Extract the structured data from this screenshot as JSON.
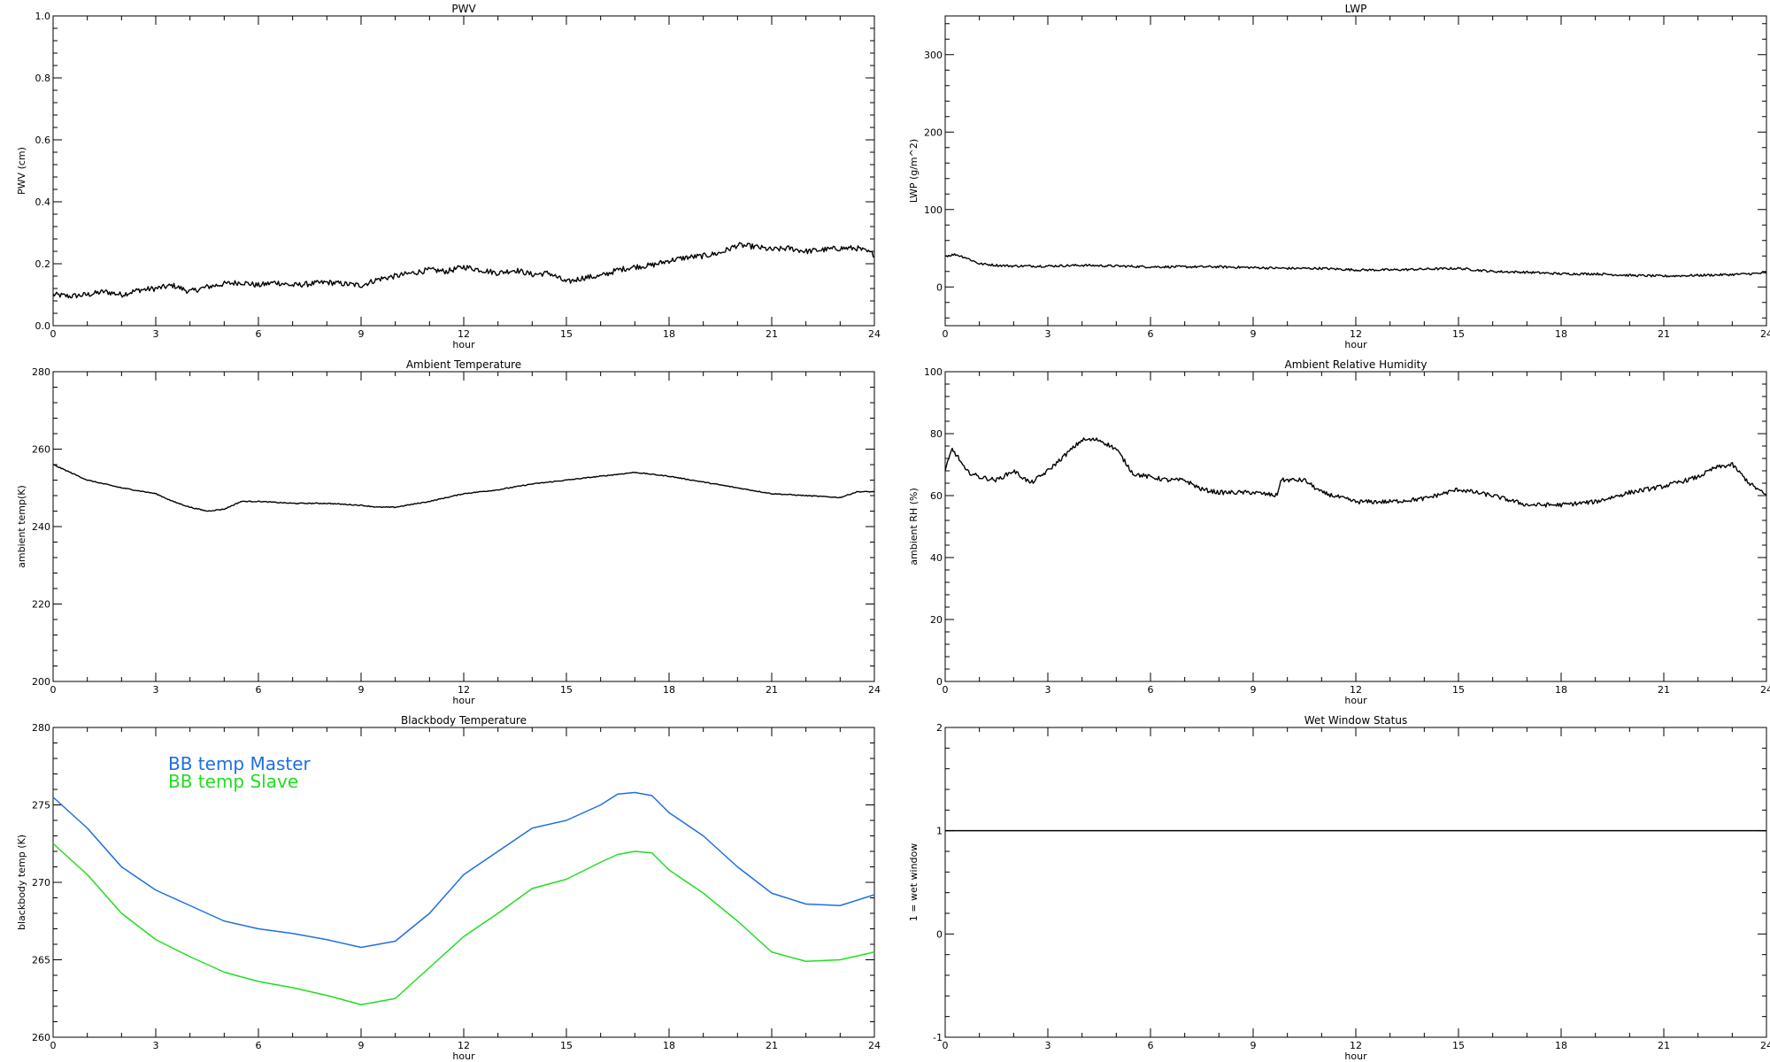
{
  "chart_data": [
    {
      "id": "pwv",
      "type": "line",
      "title": "PWV",
      "xlabel": "hour",
      "ylabel": "PWV (cm)",
      "xlim": [
        0,
        24
      ],
      "ylim": [
        0,
        1.0
      ],
      "xticks": [
        0,
        3,
        6,
        9,
        12,
        15,
        18,
        21,
        24
      ],
      "yticks": [
        "0.0",
        "0.2",
        "0.4",
        "0.6",
        "0.8",
        "1.0"
      ],
      "grid": false,
      "series": [
        {
          "color": "#000000",
          "noise": 0.009,
          "x": [
            0,
            0.5,
            1,
            1.5,
            2,
            2.5,
            3,
            3.5,
            4,
            4.5,
            5,
            5.5,
            6,
            6.5,
            7,
            7.5,
            8,
            8.5,
            9,
            9.5,
            10,
            10.5,
            11,
            11.5,
            12,
            12.5,
            13,
            13.5,
            14,
            14.5,
            15,
            15.5,
            16,
            16.5,
            17,
            17.5,
            18,
            18.5,
            19,
            19.5,
            20,
            20.5,
            21,
            21.5,
            22,
            22.5,
            23,
            23.5,
            24
          ],
          "y": [
            0.1,
            0.095,
            0.1,
            0.11,
            0.1,
            0.115,
            0.12,
            0.13,
            0.11,
            0.125,
            0.135,
            0.14,
            0.13,
            0.14,
            0.13,
            0.135,
            0.14,
            0.135,
            0.13,
            0.15,
            0.16,
            0.17,
            0.18,
            0.175,
            0.19,
            0.18,
            0.17,
            0.18,
            0.165,
            0.17,
            0.14,
            0.155,
            0.16,
            0.18,
            0.19,
            0.195,
            0.21,
            0.22,
            0.225,
            0.235,
            0.26,
            0.255,
            0.245,
            0.25,
            0.24,
            0.245,
            0.25,
            0.25,
            0.23
          ]
        }
      ]
    },
    {
      "id": "lwp",
      "type": "line",
      "title": "LWP",
      "xlabel": "hour",
      "ylabel": "LWP (g/m^2)",
      "xlim": [
        0,
        24
      ],
      "ylim": [
        -50,
        350
      ],
      "xticks": [
        0,
        3,
        6,
        9,
        12,
        15,
        18,
        21,
        24
      ],
      "yticks": [
        "0",
        "100",
        "200",
        "300"
      ],
      "grid": false,
      "series": [
        {
          "color": "#000000",
          "noise": 1.5,
          "x": [
            0,
            0.3,
            0.6,
            1,
            1.5,
            2,
            3,
            4,
            5,
            6,
            7,
            8,
            9,
            10,
            11,
            12,
            13,
            14,
            15,
            16,
            17,
            18,
            19,
            20,
            21,
            22,
            23,
            24
          ],
          "y": [
            40,
            42,
            38,
            30,
            28,
            27,
            27,
            28,
            27,
            26,
            26,
            26,
            25,
            24,
            24,
            22,
            22,
            23,
            24,
            20,
            19,
            17,
            17,
            15,
            14,
            15,
            16,
            18
          ]
        }
      ]
    },
    {
      "id": "ambient-temp",
      "type": "line",
      "title": "Ambient Temperature",
      "xlabel": "hour",
      "ylabel": "ambient temp(K)",
      "xlim": [
        0,
        24
      ],
      "ylim": [
        200,
        280
      ],
      "xticks": [
        0,
        3,
        6,
        9,
        12,
        15,
        18,
        21,
        24
      ],
      "yticks": [
        "200",
        "220",
        "240",
        "260",
        "280"
      ],
      "grid": false,
      "series": [
        {
          "color": "#000000",
          "noise": 0.12,
          "x": [
            0,
            0.5,
            1,
            1.5,
            2,
            3,
            3.5,
            4,
            4.5,
            5,
            5.5,
            6,
            7,
            8,
            9,
            9.5,
            10,
            11,
            12,
            13,
            14,
            15,
            16,
            17,
            18,
            19,
            20,
            21,
            22,
            23,
            23.5,
            24
          ],
          "y": [
            256,
            254,
            252,
            251,
            250,
            248.5,
            246.5,
            245,
            244,
            244.5,
            246.5,
            246.5,
            246,
            246,
            245.5,
            245,
            245,
            246.5,
            248.5,
            249.5,
            251,
            252,
            253,
            254,
            253,
            251.5,
            250,
            248.5,
            248,
            247.5,
            249,
            249
          ]
        }
      ]
    },
    {
      "id": "ambient-rh",
      "type": "line",
      "title": "Ambient Relative Humidity",
      "xlabel": "hour",
      "ylabel": "ambient RH (%)",
      "xlim": [
        0,
        24
      ],
      "ylim": [
        0,
        100
      ],
      "xticks": [
        0,
        3,
        6,
        9,
        12,
        15,
        18,
        21,
        24
      ],
      "yticks": [
        "0",
        "20",
        "40",
        "60",
        "80",
        "100"
      ],
      "grid": false,
      "series": [
        {
          "color": "#000000",
          "noise": 0.7,
          "x": [
            0,
            0.2,
            0.4,
            0.6,
            1,
            1.5,
            2,
            2.5,
            3,
            3.5,
            4,
            4.5,
            5,
            5.5,
            6,
            6.5,
            7,
            7.5,
            8,
            9,
            9.7,
            9.8,
            10.5,
            11,
            12,
            13,
            14,
            15,
            16,
            17,
            18,
            19,
            20,
            21,
            22,
            22.5,
            23,
            23.5,
            24
          ],
          "y": [
            68,
            75,
            72,
            68,
            66,
            65,
            68,
            64,
            68,
            73,
            78,
            78,
            75,
            67,
            66,
            65,
            65,
            62,
            61,
            61,
            60,
            65,
            65,
            61,
            58,
            58,
            59,
            62,
            60,
            57,
            57,
            58,
            61,
            63,
            66,
            69,
            70,
            64,
            60
          ]
        }
      ]
    },
    {
      "id": "bb-temp",
      "type": "line",
      "title": "Blackbody Temperature",
      "xlabel": "hour",
      "ylabel": "blackbody temp (K)",
      "xlim": [
        0,
        24
      ],
      "ylim": [
        260,
        280
      ],
      "xticks": [
        0,
        3,
        6,
        9,
        12,
        15,
        18,
        21,
        24
      ],
      "yticks": [
        "260",
        "265",
        "270",
        "275",
        "280"
      ],
      "grid": false,
      "legend": "top-left",
      "series": [
        {
          "name": "BB temp Master",
          "color": "#1f6fe0",
          "noise": 0,
          "x": [
            0,
            1,
            2,
            3,
            4,
            5,
            6,
            7,
            8,
            9,
            10,
            11,
            12,
            13,
            14,
            15,
            16,
            16.5,
            17,
            17.5,
            18,
            19,
            20,
            21,
            22,
            23,
            24
          ],
          "y": [
            275.5,
            273.5,
            271,
            269.5,
            268.5,
            267.5,
            267,
            266.7,
            266.3,
            265.8,
            266.2,
            268,
            270.5,
            272,
            273.5,
            274,
            275,
            275.7,
            275.8,
            275.6,
            274.5,
            273,
            271,
            269.3,
            268.6,
            268.5,
            269.2
          ]
        },
        {
          "name": "BB temp Slave",
          "color": "#22dd22",
          "noise": 0,
          "x": [
            0,
            1,
            2,
            3,
            4,
            5,
            6,
            7,
            8,
            9,
            10,
            11,
            12,
            13,
            14,
            15,
            16,
            16.5,
            17,
            17.5,
            18,
            19,
            20,
            21,
            22,
            23,
            24
          ],
          "y": [
            272.5,
            270.5,
            268,
            266.3,
            265.2,
            264.2,
            263.6,
            263.2,
            262.7,
            262.1,
            262.5,
            264.5,
            266.5,
            268,
            269.6,
            270.2,
            271.3,
            271.8,
            272,
            271.9,
            270.8,
            269.3,
            267.5,
            265.5,
            264.9,
            265,
            265.5
          ]
        }
      ]
    },
    {
      "id": "wet-window",
      "type": "line",
      "title": "Wet Window Status",
      "xlabel": "hour",
      "ylabel": "1 = wet window",
      "xlim": [
        0,
        24
      ],
      "ylim": [
        -1,
        2
      ],
      "xticks": [
        0,
        3,
        6,
        9,
        12,
        15,
        18,
        21,
        24
      ],
      "yticks": [
        "-1",
        "0",
        "1",
        "2"
      ],
      "grid": false,
      "series": [
        {
          "color": "#000000",
          "noise": 0,
          "x": [
            0,
            24
          ],
          "y": [
            1,
            1
          ]
        }
      ]
    }
  ]
}
